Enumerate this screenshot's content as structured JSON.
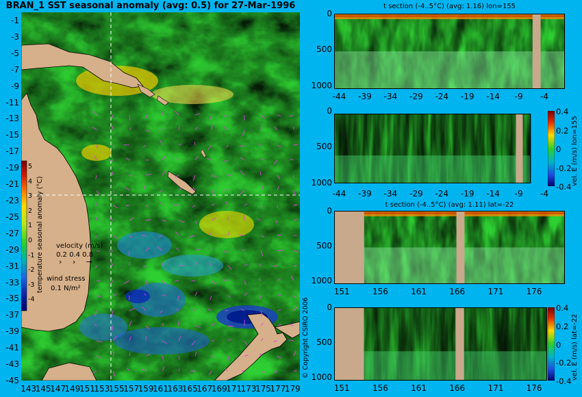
{
  "title": "BRAN_1 SST seasonal anomaly (avg: 0.5) for 27-Mar-1996",
  "copyright": "© Copyright CSIRO 2006",
  "colors": {
    "background": "#00b4f0",
    "land": "#d6b08a",
    "section_land": "#c8a98c"
  },
  "chart_data": [
    {
      "type": "heatmap",
      "name": "map",
      "title": "BRAN_1 SST seasonal anomaly (avg: 0.5) for 27-Mar-1996",
      "x_ticks": [
        "143",
        "145",
        "147",
        "149",
        "151",
        "153",
        "155",
        "157",
        "159",
        "161",
        "163",
        "165",
        "167",
        "169",
        "171",
        "173",
        "175",
        "177",
        "179"
      ],
      "y_ticks": [
        "-1",
        "-3",
        "-5",
        "-7",
        "-9",
        "-11",
        "-13",
        "-15",
        "-17",
        "-19",
        "-21",
        "-23",
        "-25",
        "-27",
        "-29",
        "-31",
        "-33",
        "-35",
        "-37",
        "-39",
        "-41",
        "-43",
        "-45"
      ],
      "xlim": [
        142,
        180
      ],
      "ylim": [
        -45,
        0
      ],
      "crosshair": {
        "lon": 155,
        "lat": -22
      },
      "colorbar": {
        "label": "temperature seasonal anomaly (°C)",
        "ticks": [
          "5",
          "4",
          "3",
          "2",
          "1",
          "0",
          "-1",
          "-2",
          "-3",
          "-4"
        ],
        "range": [
          -4,
          5
        ]
      },
      "velocity_legend": {
        "label": "velocity (m/s)",
        "values": "0.2 0.4 0.8"
      },
      "wind_legend": {
        "label": "wind stress",
        "value": "0.1 N/m²"
      }
    },
    {
      "type": "heatmap",
      "name": "t-section-lon155",
      "title": "t section (-4..5°C) (avg: 1.16) lon=155",
      "x_ticks": [
        "-44",
        "-39",
        "-34",
        "-29",
        "-24",
        "-19",
        "-14",
        "-9",
        "-4"
      ],
      "y_ticks": [
        "0",
        "500",
        "1000"
      ],
      "xlim": [
        -45,
        0
      ],
      "ylim": [
        1050,
        0
      ]
    },
    {
      "type": "heatmap",
      "name": "vel-section-lon155",
      "x_ticks": [
        "-44",
        "-39",
        "-34",
        "-29",
        "-24",
        "-19",
        "-14",
        "-9",
        "-4"
      ],
      "y_ticks": [
        "0",
        "500",
        "1000"
      ],
      "xlim": [
        -45,
        0
      ],
      "ylim": [
        1050,
        0
      ],
      "colorbar": {
        "label": "vel. E (m/s) lon=155",
        "ticks": [
          "0.4",
          "0.2",
          "0",
          "-0.2",
          "-0.4"
        ],
        "range": [
          -0.4,
          0.4
        ]
      }
    },
    {
      "type": "heatmap",
      "name": "t-section-lat-22",
      "title": "t section (-4..5°C) (avg: 1.11) lat=-22",
      "x_ticks": [
        "151",
        "156",
        "161",
        "166",
        "171",
        "176"
      ],
      "y_ticks": [
        "0",
        "500",
        "1000"
      ],
      "xlim": [
        150,
        180
      ],
      "ylim": [
        1050,
        0
      ]
    },
    {
      "type": "heatmap",
      "name": "vel-section-lat-22",
      "x_ticks": [
        "151",
        "156",
        "161",
        "166",
        "171",
        "176"
      ],
      "y_ticks": [
        "0",
        "500",
        "1000"
      ],
      "xlim": [
        150,
        180
      ],
      "ylim": [
        1050,
        0
      ],
      "colorbar": {
        "label": "vel. E (m/s) lat=-22",
        "ticks": [
          "0.4",
          "0.2",
          "0",
          "-0.2",
          "-0.4"
        ],
        "range": [
          -0.4,
          0.4
        ]
      }
    }
  ]
}
